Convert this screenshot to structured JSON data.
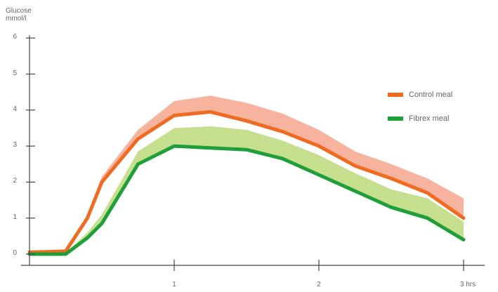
{
  "chart_data": {
    "type": "area",
    "title": "",
    "ylabel": "Glucose\nmmol/l",
    "xlabel": "",
    "xlim": [
      0,
      3.1
    ],
    "ylim": [
      0,
      6
    ],
    "x_ticks": [
      {
        "value": 1,
        "label": "1"
      },
      {
        "value": 2,
        "label": "2"
      },
      {
        "value": 3,
        "label": "3 hrs"
      }
    ],
    "y_ticks": [
      0,
      1,
      2,
      3,
      4,
      5,
      6
    ],
    "grid": false,
    "legend_position": "right",
    "x": [
      0,
      0.25,
      0.4,
      0.5,
      0.75,
      1.0,
      1.25,
      1.5,
      1.75,
      2.0,
      2.25,
      2.5,
      2.75,
      3.0
    ],
    "series": [
      {
        "name": "Control meal",
        "color": "#ef6b21",
        "band_color": "#f7b39d",
        "values": [
          0.05,
          0.08,
          1.0,
          2.0,
          3.2,
          3.85,
          3.95,
          3.7,
          3.4,
          3.0,
          2.45,
          2.1,
          1.7,
          1.0
        ],
        "upper": [
          0.07,
          0.1,
          1.1,
          2.15,
          3.45,
          4.25,
          4.4,
          4.2,
          3.9,
          3.45,
          2.85,
          2.5,
          2.1,
          1.55
        ]
      },
      {
        "name": "Fibrex meal",
        "color": "#1f9e3a",
        "band_color": "#c6df8f",
        "values": [
          0.0,
          0.0,
          0.45,
          0.85,
          2.5,
          3.0,
          2.95,
          2.9,
          2.65,
          2.2,
          1.75,
          1.3,
          1.0,
          0.4
        ],
        "upper": [
          0.02,
          0.03,
          0.6,
          1.1,
          2.85,
          3.5,
          3.55,
          3.45,
          3.15,
          2.75,
          2.25,
          1.8,
          1.55,
          0.9
        ]
      }
    ]
  }
}
